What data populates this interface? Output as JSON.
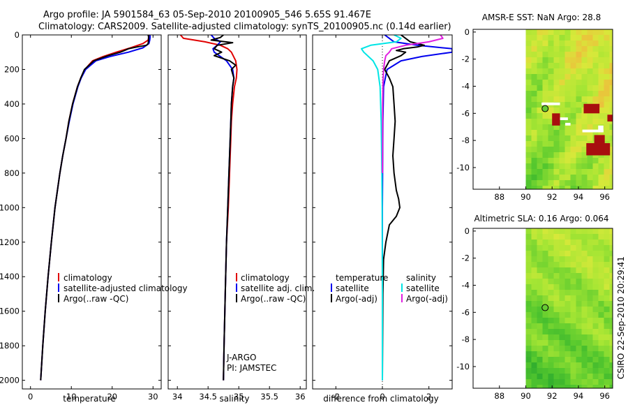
{
  "header": {
    "line1": "Argo profile: JA 5901584_63 05-Sep-2010 20100905_546 5.65S 91.467E",
    "line2": "Climatology: CARS2009. Satellite-adjusted climatology: synTS_20100905.nc (0.14d earlier)"
  },
  "credit": "CSIRO 22-Sep-2010 20:29:41",
  "chart_data": [
    {
      "id": "temperature",
      "type": "line",
      "xlabel": "temperature",
      "ylabel": "",
      "xlim": [
        -2,
        32
      ],
      "ylim": [
        2050,
        0
      ],
      "xticks": [
        0,
        10,
        20,
        30
      ],
      "yticks": [
        0,
        200,
        400,
        600,
        800,
        1000,
        1200,
        1400,
        1600,
        1800,
        2000
      ],
      "colors": {
        "climatology": "#e00000",
        "satellite": "#0000ee",
        "argo": "#000000"
      },
      "series": [
        {
          "name": "climatology",
          "key": "climatology",
          "depth": [
            0,
            10,
            30,
            50,
            75,
            100,
            125,
            150,
            200,
            250,
            300,
            400,
            500,
            600,
            700,
            800,
            900,
            1000,
            1200,
            1400,
            1600,
            1800,
            2000
          ],
          "values": [
            29.1,
            29.0,
            28.8,
            27.5,
            24.5,
            21.0,
            17.8,
            15.2,
            13.3,
            12.3,
            11.5,
            10.3,
            9.4,
            8.7,
            7.9,
            7.2,
            6.6,
            6.0,
            5.1,
            4.3,
            3.6,
            3.0,
            2.5
          ]
        },
        {
          "name": "satellite-adjusted climatology",
          "key": "satellite",
          "depth": [
            0,
            10,
            30,
            50,
            75,
            100,
            125,
            150,
            200,
            250,
            300,
            400,
            500,
            600,
            700,
            800,
            900,
            1000,
            1200,
            1400,
            1600,
            1800,
            2000
          ],
          "values": [
            29.2,
            29.3,
            29.2,
            29.0,
            27.5,
            24.0,
            19.5,
            16.0,
            13.5,
            12.4,
            11.6,
            10.4,
            9.5,
            8.7,
            7.9,
            7.2,
            6.6,
            6.0,
            5.1,
            4.3,
            3.6,
            3.0,
            2.5
          ]
        },
        {
          "name": "Argo(..raw -QC)",
          "key": "argo",
          "depth": [
            0,
            10,
            30,
            50,
            60,
            70,
            80,
            90,
            100,
            120,
            150,
            200,
            250,
            300,
            400,
            500,
            600,
            700,
            800,
            900,
            1000,
            1200,
            1400,
            1600,
            1800,
            2000
          ],
          "values": [
            28.8,
            28.9,
            28.9,
            28.8,
            28.4,
            26.0,
            24.0,
            23.0,
            22.0,
            19.0,
            15.5,
            13.2,
            12.3,
            11.5,
            10.3,
            9.4,
            8.7,
            7.9,
            7.2,
            6.6,
            6.0,
            5.1,
            4.3,
            3.6,
            3.0,
            2.5
          ]
        }
      ],
      "legend": [
        "climatology",
        "satellite-adjusted climatology",
        "Argo(..raw -QC)"
      ]
    },
    {
      "id": "salinity",
      "type": "line",
      "xlabel": "salinity",
      "ylabel": "",
      "xlim": [
        33.85,
        36.1
      ],
      "ylim": [
        2050,
        0
      ],
      "xticks": [
        34,
        34.5,
        35,
        35.5,
        36
      ],
      "colors": {
        "climatology": "#e00000",
        "satellite": "#0000ee",
        "argo": "#000000"
      },
      "series": [
        {
          "name": "climatology",
          "key": "climatology",
          "depth": [
            0,
            20,
            40,
            60,
            80,
            100,
            150,
            200,
            250,
            300,
            400,
            500,
            600,
            800,
            1000,
            1200,
            1500,
            1800,
            2000
          ],
          "values": [
            34.05,
            34.1,
            34.45,
            34.7,
            34.82,
            34.88,
            34.95,
            34.97,
            34.96,
            34.93,
            34.9,
            34.88,
            34.87,
            34.85,
            34.83,
            34.8,
            34.78,
            34.76,
            34.75
          ]
        },
        {
          "name": "satellite adj. clim.",
          "key": "satellite",
          "depth": [
            0,
            20,
            40,
            60,
            80,
            100,
            150,
            200,
            250,
            300,
            400,
            500,
            600,
            800,
            1000,
            1200,
            1500,
            1800,
            2000
          ],
          "values": [
            34.55,
            34.6,
            34.7,
            34.65,
            34.58,
            34.6,
            34.8,
            34.9,
            34.92,
            34.9,
            34.88,
            34.87,
            34.86,
            34.84,
            34.82,
            34.8,
            34.78,
            34.76,
            34.75
          ]
        },
        {
          "name": "Argo(..raw -QC)",
          "key": "argo",
          "depth": [
            0,
            15,
            30,
            45,
            60,
            80,
            100,
            120,
            150,
            175,
            200,
            250,
            300,
            400,
            500,
            600,
            800,
            1000,
            1200,
            1500,
            1800,
            2000
          ],
          "values": [
            34.75,
            34.7,
            34.55,
            34.9,
            34.65,
            34.6,
            34.72,
            34.6,
            34.85,
            34.95,
            34.88,
            34.92,
            34.9,
            34.88,
            34.87,
            34.86,
            34.84,
            34.82,
            34.8,
            34.78,
            34.76,
            34.75
          ]
        }
      ],
      "legend": [
        "climatology",
        "satellite adj. clim.",
        "Argo(..raw -QC)"
      ],
      "annotations": [
        "J-ARGO",
        "PI: JAMSTEC"
      ]
    },
    {
      "id": "difference",
      "type": "line",
      "xlabel": "difference from climatology",
      "ylabel": "",
      "xlim": [
        -3,
        3
      ],
      "ylim": [
        2050,
        0
      ],
      "xticks": [
        -2,
        0,
        2
      ],
      "colors": {
        "t_satellite": "#0000ee",
        "t_argo": "#000000",
        "s_satellite": "#00e5e5",
        "s_argo": "#e020e0"
      },
      "series": [
        {
          "name": "temperature satellite",
          "key": "t_satellite",
          "depth": [
            0,
            20,
            40,
            60,
            80,
            100,
            125,
            150,
            200,
            300,
            500,
            800,
            1000,
            1500,
            2000
          ],
          "values": [
            0.1,
            0.3,
            0.5,
            1.5,
            3.0,
            3.0,
            1.7,
            0.8,
            0.2,
            0.05,
            0.02,
            0.01,
            0.0,
            0.0,
            0.0
          ]
        },
        {
          "name": "temperature Argo(-adj)",
          "key": "t_argo",
          "depth": [
            0,
            20,
            40,
            50,
            60,
            70,
            80,
            90,
            100,
            120,
            150,
            200,
            250,
            300,
            400,
            500,
            600,
            700,
            800,
            900,
            950,
            1000,
            1050,
            1100,
            1200,
            1300,
            1500,
            2000
          ],
          "values": [
            0.8,
            1.0,
            1.2,
            1.5,
            1.8,
            1.5,
            0.9,
            0.6,
            1.0,
            0.8,
            0.3,
            0.1,
            0.3,
            0.45,
            0.5,
            0.55,
            0.5,
            0.45,
            0.5,
            0.6,
            0.7,
            0.75,
            0.6,
            0.3,
            0.15,
            0.05,
            0.02,
            0.0
          ]
        },
        {
          "name": "salinity satellite",
          "key": "s_satellite",
          "depth": [
            0,
            20,
            40,
            60,
            80,
            100,
            150,
            200,
            300,
            500,
            800,
            1000,
            1500,
            2000
          ],
          "values": [
            0.5,
            0.8,
            0.6,
            -0.5,
            -0.9,
            -0.8,
            -0.4,
            -0.2,
            -0.1,
            -0.05,
            -0.02,
            -0.01,
            0.0,
            0.0
          ]
        },
        {
          "name": "salinity Argo(-adj)",
          "key": "s_argo",
          "depth": [
            0,
            20,
            40,
            60,
            80,
            100,
            120,
            150,
            200,
            300,
            400,
            600,
            800
          ],
          "values": [
            2.5,
            2.6,
            2.0,
            1.0,
            0.4,
            0.3,
            0.15,
            0.1,
            0.05,
            0.02,
            0.01,
            0.01,
            0.0
          ]
        }
      ],
      "legend_titles": [
        "temperature",
        "salinity"
      ],
      "legend": [
        "satellite",
        "Argo(-adj)",
        "satellite",
        "Argo(-adj)"
      ]
    },
    {
      "id": "sst_map",
      "type": "heatmap",
      "title": "AMSR-E SST: NaN Argo: 28.8",
      "xlim": [
        86,
        96.6
      ],
      "ylim": [
        -11.6,
        0.2
      ],
      "xticks": [
        88,
        90,
        92,
        94,
        96
      ],
      "yticks": [
        0,
        -2,
        -4,
        -6,
        -8,
        -10
      ],
      "data_region_lon_start": 90,
      "argo_point": [
        91.47,
        -5.65
      ],
      "argo_point_color": "#66cc33"
    },
    {
      "id": "sla_map",
      "type": "heatmap",
      "title": "Altimetric SLA: 0.16 Argo: 0.064",
      "xlim": [
        86,
        96.6
      ],
      "ylim": [
        -11.6,
        0.2
      ],
      "xticks": [
        88,
        90,
        92,
        94,
        96
      ],
      "yticks": [
        0,
        -2,
        -4,
        -6,
        -8,
        -10
      ],
      "data_region_lon_start": 90,
      "argo_point": [
        91.47,
        -5.65
      ],
      "argo_point_color": "#66cc33"
    }
  ]
}
